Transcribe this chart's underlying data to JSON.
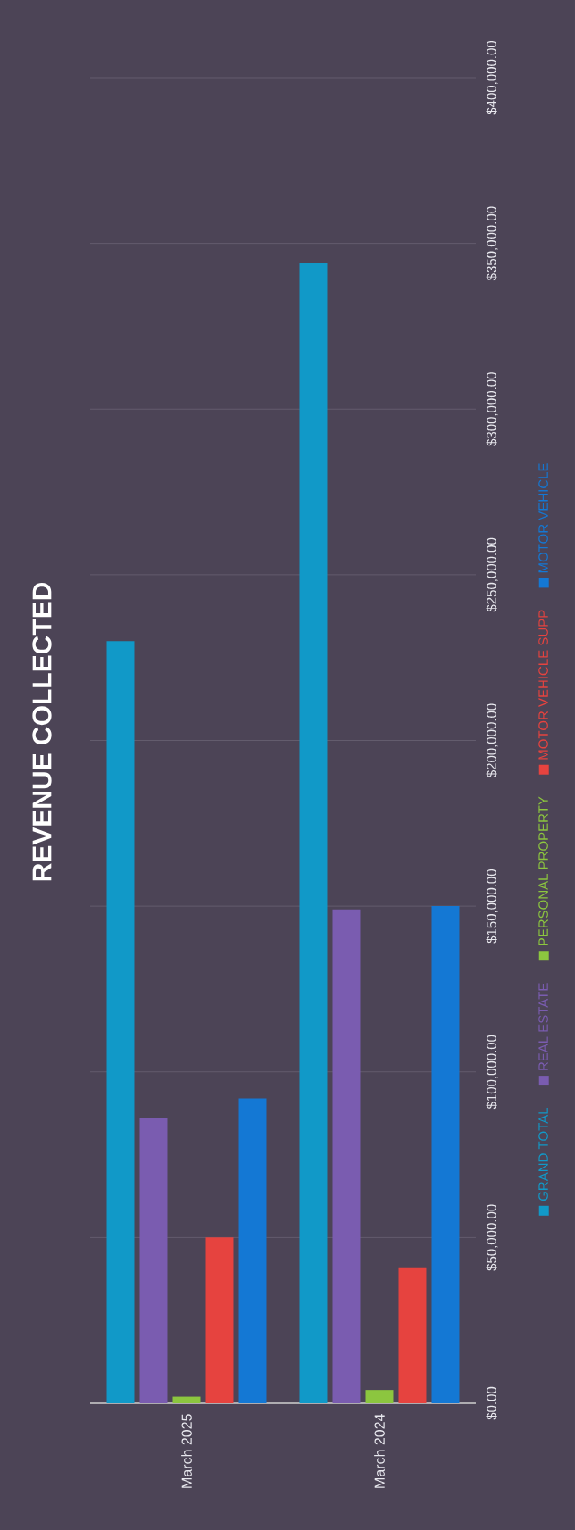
{
  "chart_data": {
    "type": "bar",
    "title": "REVENUE COLLECTED",
    "categories": [
      "March 2025",
      "March 2024"
    ],
    "series": [
      {
        "name": "GRAND TOTAL",
        "color": "#1199c8",
        "values": [
          230000,
          344000
        ]
      },
      {
        "name": "REAL ESTATE",
        "color": "#7a5cb0",
        "values": [
          86000,
          149000
        ]
      },
      {
        "name": "PERSONAL PROPERTY",
        "color": "#8cc63f",
        "values": [
          2000,
          4000
        ]
      },
      {
        "name": "MOTOR VEHICLE SUPP",
        "color": "#e6433f",
        "values": [
          50000,
          41000
        ]
      },
      {
        "name": "MOTOR VEHICLE",
        "color": "#1478d4",
        "values": [
          92000,
          150000
        ]
      }
    ],
    "ylim": [
      0,
      400000
    ],
    "yticks": [
      {
        "value": 0,
        "label": "$0.00"
      },
      {
        "value": 50000,
        "label": "$50,000.00"
      },
      {
        "value": 100000,
        "label": "$100,000.00"
      },
      {
        "value": 150000,
        "label": "$150,000.00"
      },
      {
        "value": 200000,
        "label": "$200,000.00"
      },
      {
        "value": 250000,
        "label": "$250,000.00"
      },
      {
        "value": 300000,
        "label": "$300,000.00"
      },
      {
        "value": 350000,
        "label": "$350,000.00"
      },
      {
        "value": 400000,
        "label": "$400,000.00"
      }
    ],
    "grid": "y",
    "legend": "right"
  }
}
